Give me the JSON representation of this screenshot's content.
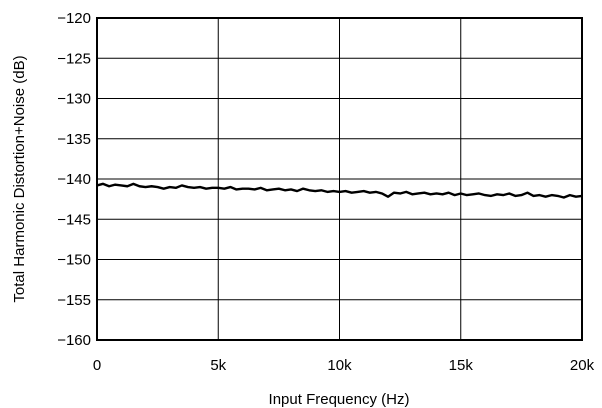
{
  "chart_data": {
    "type": "line",
    "title": "",
    "xlabel": "Input Frequency (Hz)",
    "ylabel": "Total Harmonic Distortion+Noise (dB)",
    "xlim": [
      0,
      20000
    ],
    "ylim": [
      -160,
      -120
    ],
    "grid": true,
    "x_ticks": [
      0,
      5000,
      10000,
      15000,
      20000
    ],
    "x_tick_labels": [
      "0",
      "5k",
      "10k",
      "15k",
      "20k"
    ],
    "y_ticks": [
      -120,
      -125,
      -130,
      -135,
      -140,
      -145,
      -150,
      -155,
      -160
    ],
    "y_tick_labels": [
      "−120",
      "−125",
      "−130",
      "−135",
      "−140",
      "−145",
      "−150",
      "−155",
      "−160"
    ],
    "series": [
      {
        "color": "#000000",
        "x": [
          0,
          250,
          500,
          750,
          1000,
          1250,
          1500,
          1750,
          2000,
          2250,
          2500,
          2750,
          3000,
          3250,
          3500,
          3750,
          4000,
          4250,
          4500,
          4750,
          5000,
          5250,
          5500,
          5750,
          6000,
          6250,
          6500,
          6750,
          7000,
          7250,
          7500,
          7750,
          8000,
          8250,
          8500,
          8750,
          9000,
          9250,
          9500,
          9750,
          10000,
          10250,
          10500,
          10750,
          11000,
          11250,
          11500,
          11750,
          12000,
          12250,
          12500,
          12750,
          13000,
          13250,
          13500,
          13750,
          14000,
          14250,
          14500,
          14750,
          15000,
          15250,
          15500,
          15750,
          16000,
          16250,
          16500,
          16750,
          17000,
          17250,
          17500,
          17750,
          18000,
          18250,
          18500,
          18750,
          19000,
          19250,
          19500,
          19750,
          20000
        ],
        "y": [
          -140.8,
          -140.6,
          -140.9,
          -140.7,
          -140.8,
          -140.9,
          -140.6,
          -140.9,
          -141.0,
          -140.9,
          -141.0,
          -141.2,
          -141.0,
          -141.1,
          -140.8,
          -141.0,
          -141.1,
          -141.0,
          -141.2,
          -141.1,
          -141.1,
          -141.2,
          -141.0,
          -141.3,
          -141.2,
          -141.2,
          -141.3,
          -141.1,
          -141.4,
          -141.3,
          -141.2,
          -141.4,
          -141.3,
          -141.5,
          -141.2,
          -141.4,
          -141.5,
          -141.4,
          -141.6,
          -141.5,
          -141.6,
          -141.5,
          -141.7,
          -141.6,
          -141.5,
          -141.7,
          -141.6,
          -141.8,
          -142.2,
          -141.7,
          -141.8,
          -141.6,
          -141.9,
          -141.8,
          -141.7,
          -141.9,
          -141.8,
          -141.9,
          -141.7,
          -142.0,
          -141.8,
          -142.0,
          -141.9,
          -141.8,
          -142.0,
          -142.1,
          -141.9,
          -142.0,
          -141.8,
          -142.1,
          -142.0,
          -141.7,
          -142.1,
          -142.0,
          -142.2,
          -142.0,
          -142.1,
          -142.3,
          -142.0,
          -142.2,
          -142.1
        ]
      }
    ]
  }
}
